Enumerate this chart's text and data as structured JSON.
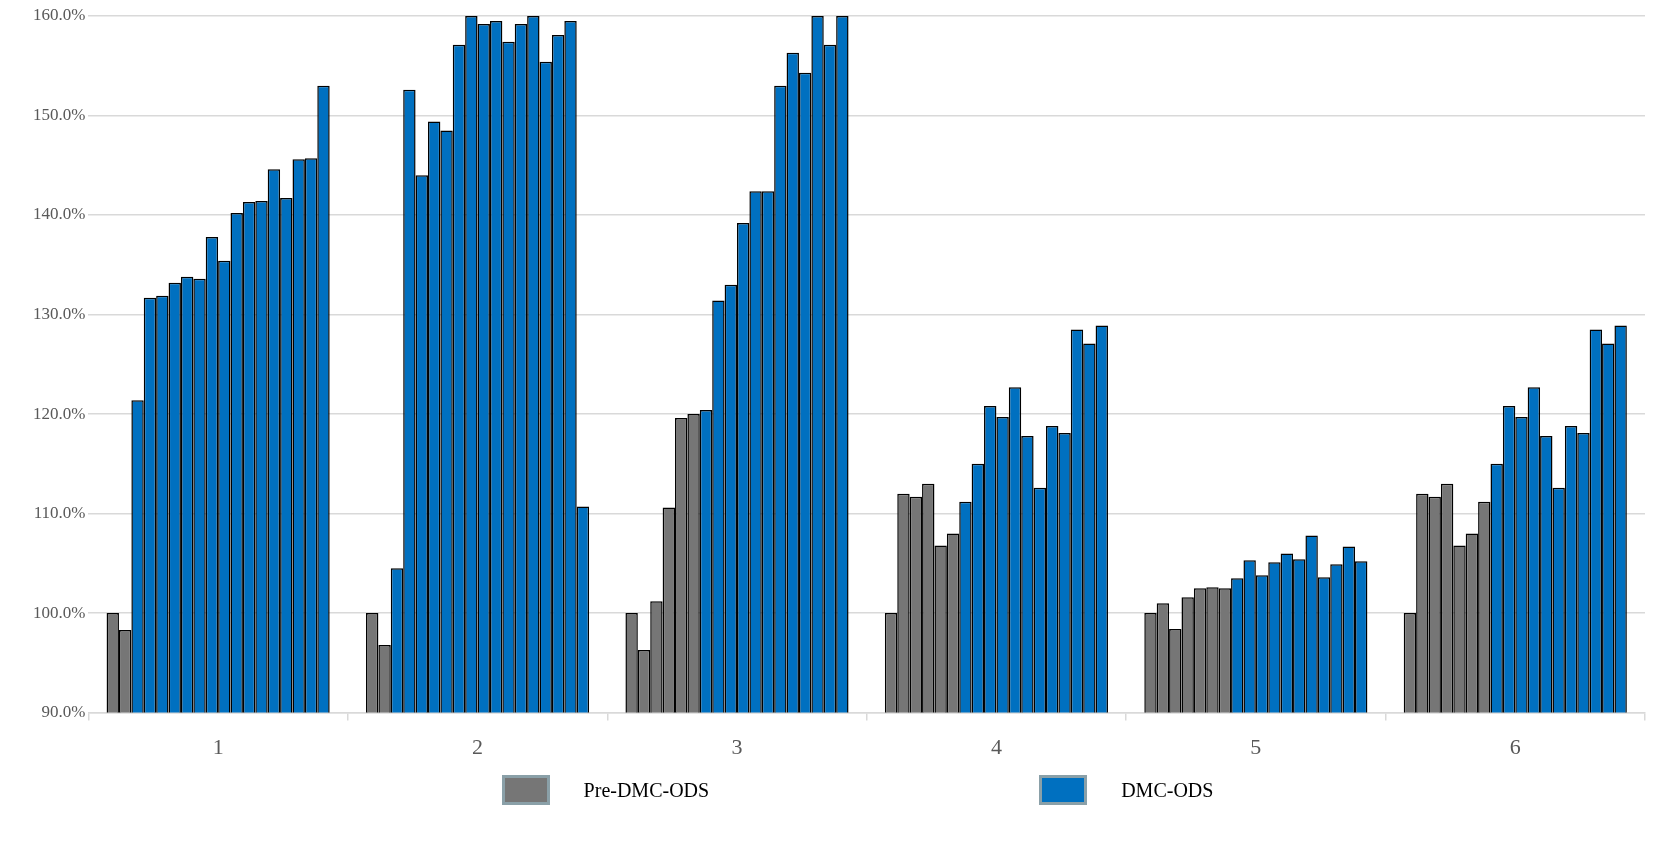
{
  "chart_data": {
    "type": "bar",
    "categories": [
      "1",
      "2",
      "3",
      "4",
      "5",
      "6"
    ],
    "ylim": [
      90,
      160
    ],
    "yticks": [
      {
        "value": 90,
        "label": "90.0%"
      },
      {
        "value": 100,
        "label": "100.0%"
      },
      {
        "value": 110,
        "label": "110.0%"
      },
      {
        "value": 120,
        "label": "120.0%"
      },
      {
        "value": 130,
        "label": "130.0%"
      },
      {
        "value": 140,
        "label": "140.0%"
      },
      {
        "value": 150,
        "label": "150.0%"
      },
      {
        "value": 160,
        "label": "160.0%"
      }
    ],
    "grid": "y",
    "legend": "bottom",
    "series": [
      {
        "name": "Pre-DMC-ODS",
        "color": "#767676",
        "values": [
          100,
          100,
          100,
          100,
          100,
          100
        ]
      },
      {
        "color": "#767676",
        "values": [
          98.3,
          96.8,
          96.3,
          112.0,
          101.0,
          112.0
        ]
      },
      {
        "colors": [
          "#0070c0",
          "#0070c0",
          "#767676",
          "#767676",
          "#767676",
          "#767676"
        ],
        "values": [
          121.4,
          104.5,
          101.2,
          111.7,
          98.4,
          111.7
        ]
      },
      {
        "colors": [
          "#0070c0",
          "#0070c0",
          "#767676",
          "#767676",
          "#767676",
          "#767676"
        ],
        "values": [
          131.7,
          152.6,
          110.6,
          113.0,
          101.6,
          113.0
        ]
      },
      {
        "colors": [
          "#0070c0",
          "#0070c0",
          "#767676",
          "#767676",
          "#767676",
          "#767676"
        ],
        "values": [
          131.9,
          144.0,
          119.6,
          106.8,
          102.5,
          106.8
        ]
      },
      {
        "colors": [
          "#0070c0",
          "#0070c0",
          "#767676",
          "#767676",
          "#767676",
          "#767676"
        ],
        "values": [
          133.2,
          149.4,
          120.0,
          108.0,
          102.6,
          108.0
        ]
      },
      {
        "colors": [
          "#0070c0",
          "#0070c0",
          "#0070c0",
          "#0070c0",
          "#767676",
          "#767676"
        ],
        "values": [
          133.8,
          148.5,
          120.4,
          111.2,
          102.5,
          111.2
        ]
      },
      {
        "color": "#0070c0",
        "values": [
          133.6,
          157.1,
          131.4,
          115.0,
          103.5,
          115.0
        ]
      },
      {
        "color": "#0070c0",
        "values": [
          137.8,
          160,
          133.0,
          120.8,
          105.3,
          120.8
        ]
      },
      {
        "color": "#0070c0",
        "values": [
          135.4,
          159.2,
          139.2,
          119.7,
          103.8,
          119.7
        ]
      },
      {
        "color": "#0070c0",
        "values": [
          140.2,
          159.5,
          142.4,
          122.7,
          105.1,
          122.7
        ]
      },
      {
        "color": "#0070c0",
        "values": [
          141.3,
          157.4,
          142.4,
          117.8,
          106.0,
          117.8
        ]
      },
      {
        "color": "#0070c0",
        "values": [
          141.4,
          159.2,
          153.0,
          112.6,
          105.4,
          112.6
        ]
      },
      {
        "color": "#0070c0",
        "values": [
          144.6,
          160,
          156.3,
          118.8,
          107.8,
          118.8
        ]
      },
      {
        "color": "#0070c0",
        "values": [
          141.7,
          155.4,
          154.3,
          118.1,
          103.6,
          118.1
        ]
      },
      {
        "color": "#0070c0",
        "values": [
          145.6,
          158.1,
          160,
          128.5,
          104.9,
          128.5
        ]
      },
      {
        "color": "#0070c0",
        "values": [
          145.7,
          159.5,
          157.1,
          127.1,
          106.7,
          127.1
        ]
      },
      {
        "name": "DMC-ODS",
        "color": "#0070c0",
        "values": [
          153.0,
          110.7,
          160,
          128.9,
          105.2,
          128.9
        ]
      }
    ]
  }
}
